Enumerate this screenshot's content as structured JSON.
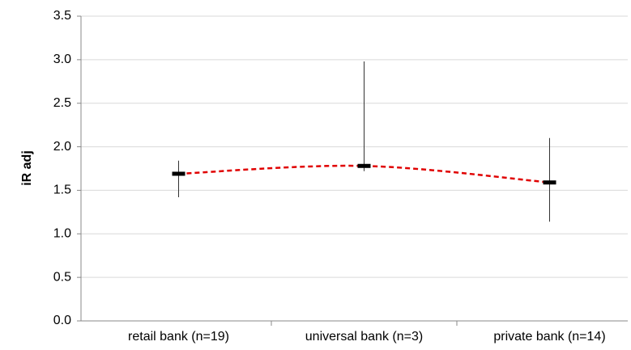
{
  "chart_data": {
    "type": "range",
    "y_label": "iR adj",
    "categories": [
      "retail bank (n=19)",
      "universal bank (n=3)",
      "private bank (n=14)"
    ],
    "series": [
      {
        "name": "mean",
        "color": "#000000",
        "values": [
          1.69,
          1.78,
          1.59
        ]
      },
      {
        "name": "max",
        "color": "#333333",
        "values": [
          1.84,
          2.98,
          2.1
        ]
      },
      {
        "name": "min",
        "color": "#333333",
        "values": [
          1.42,
          1.72,
          1.14
        ]
      }
    ],
    "trend_color": "#e00000",
    "ylim": [
      0,
      3.5
    ],
    "yticks": [
      {
        "value": 0,
        "label": "0.0"
      },
      {
        "value": 0.5,
        "label": "0.5"
      },
      {
        "value": 1,
        "label": "1.0"
      },
      {
        "value": 1.5,
        "label": "1.5"
      },
      {
        "value": 2,
        "label": "2.0"
      },
      {
        "value": 2.5,
        "label": "2.5"
      },
      {
        "value": 3,
        "label": "3.0"
      },
      {
        "value": 3.5,
        "label": "3.5"
      }
    ],
    "grid": true
  }
}
